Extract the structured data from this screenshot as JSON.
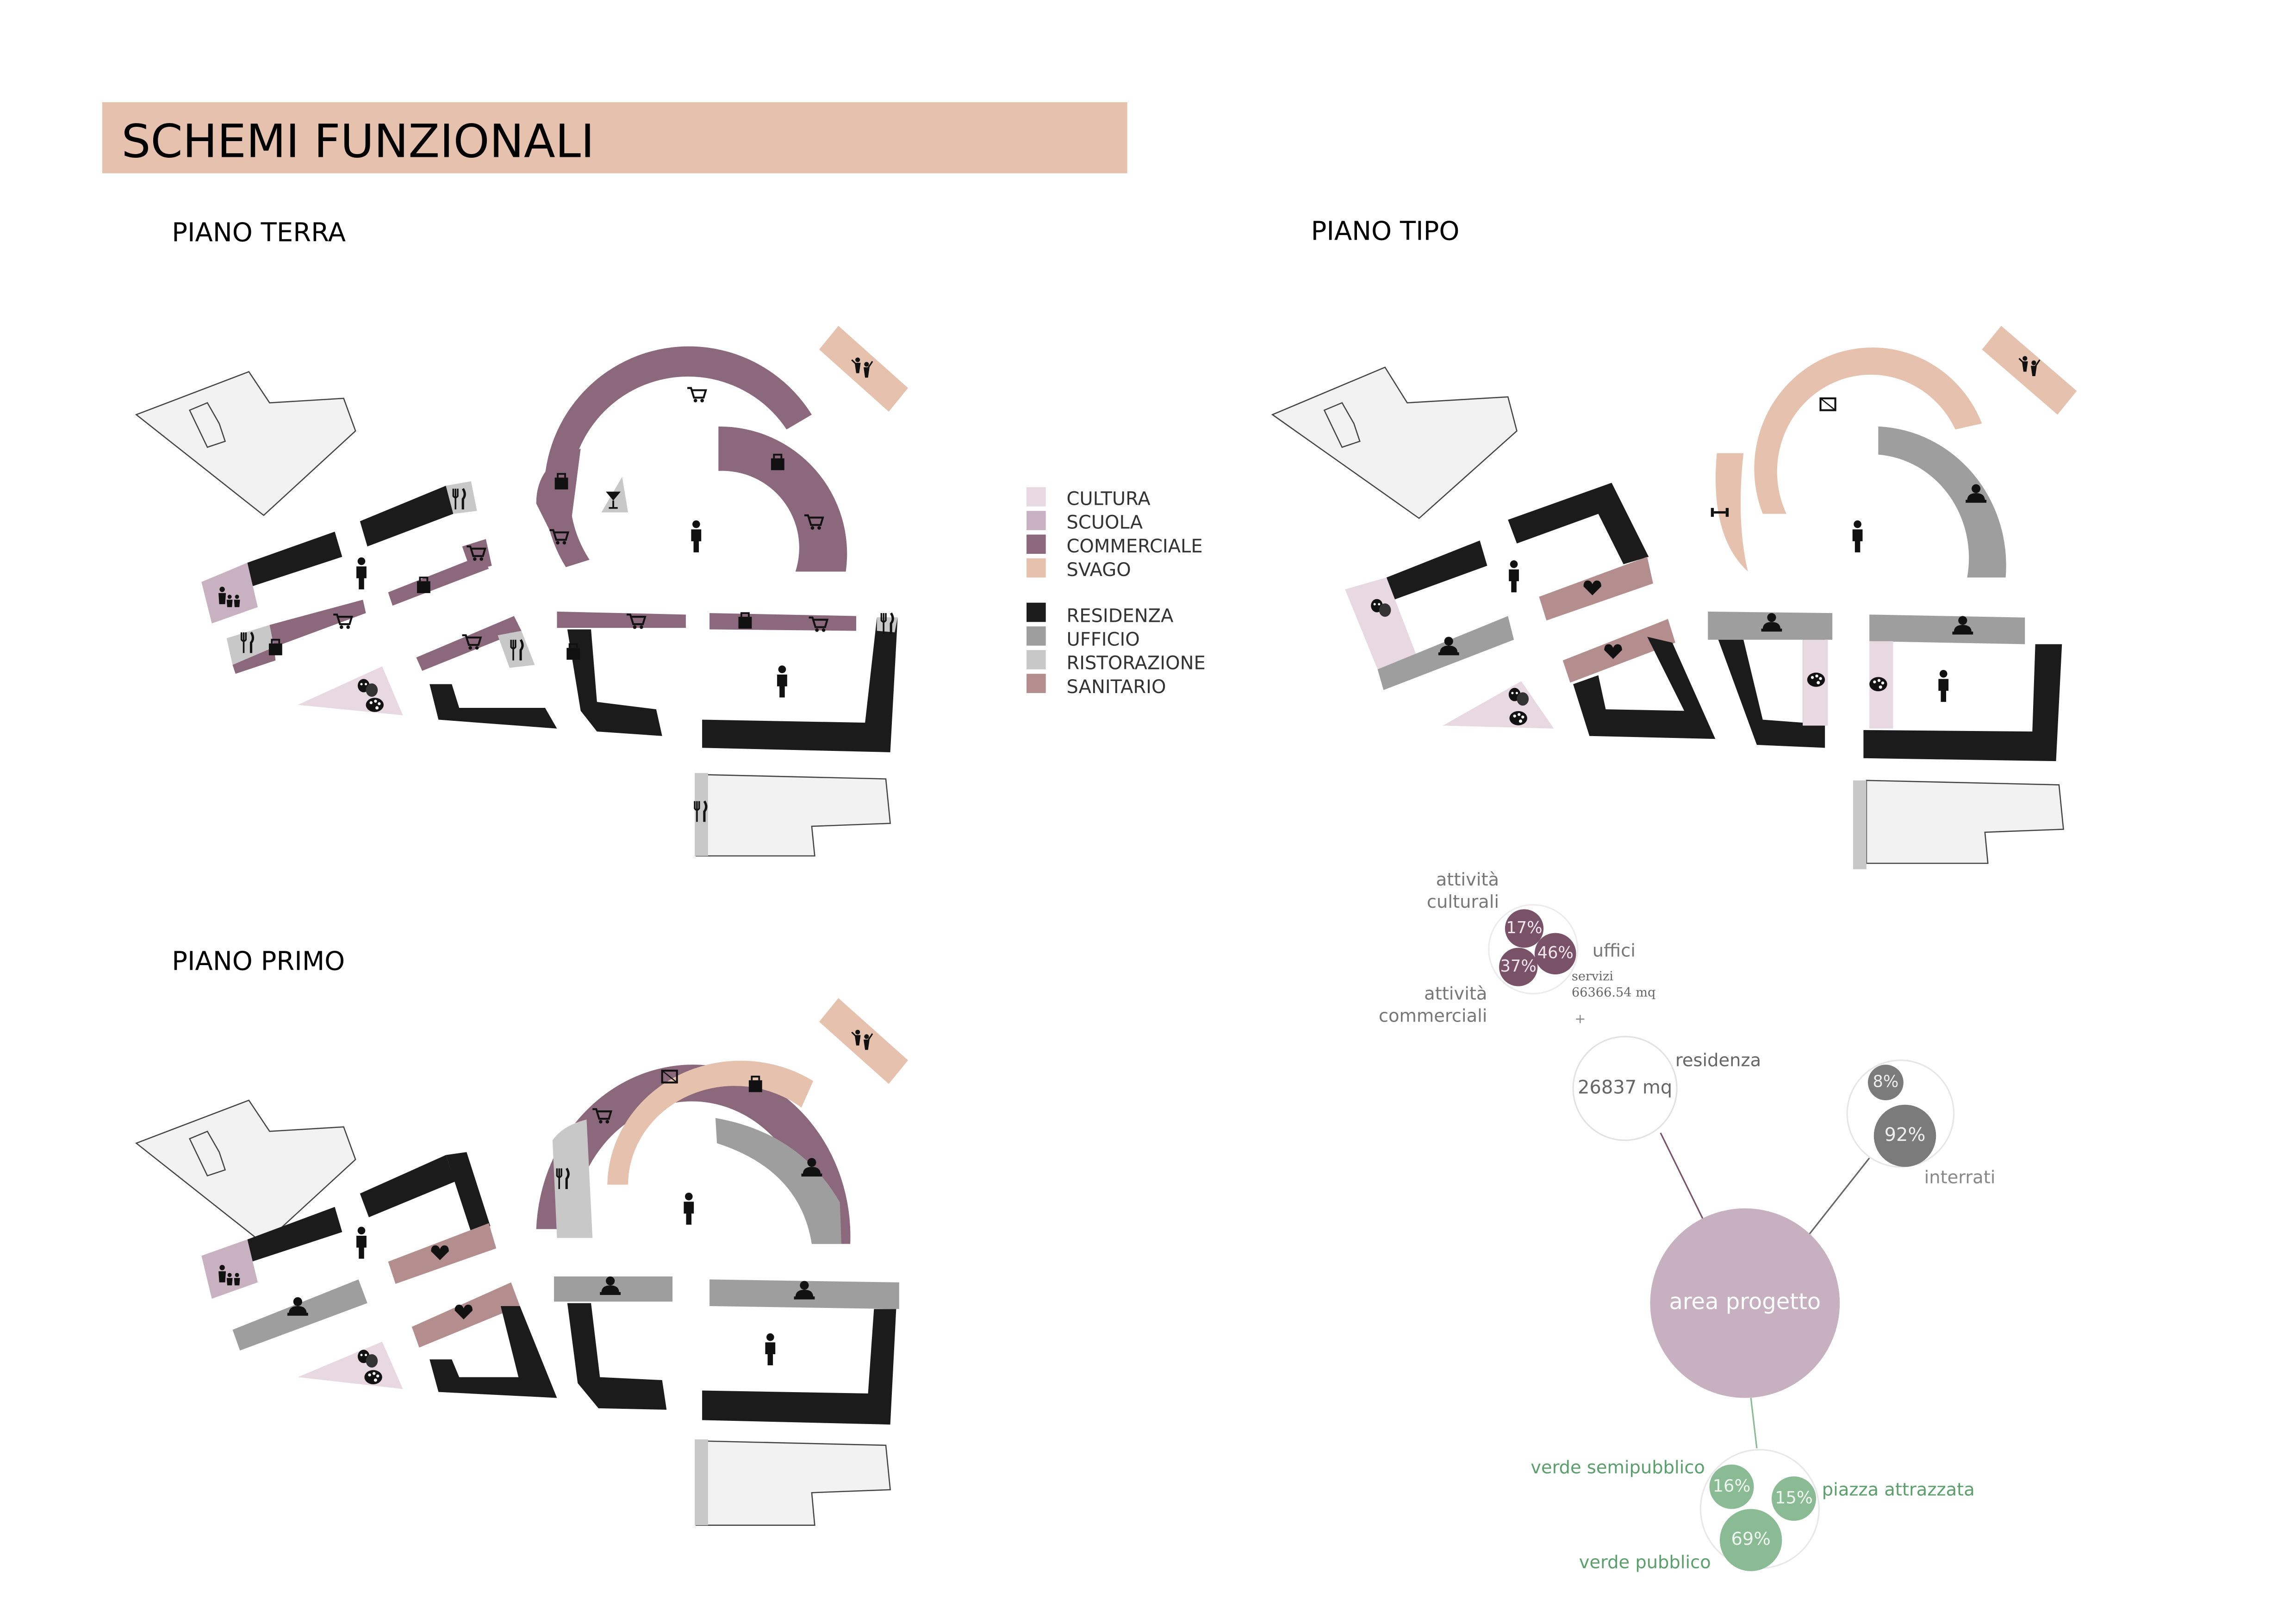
{
  "title": "SCHEMI FUNZIONALI",
  "sections": {
    "terra": "PIANO TERRA",
    "tipo": "PIANO TIPO",
    "primo": "PIANO PRIMO"
  },
  "colors": {
    "cultura": "#e8d9e1",
    "scuola": "#c8b1c1",
    "commerciale": "#8b687c",
    "svago": "#e6c2ae",
    "residenza": "#1b1b1b",
    "ufficio": "#9e9e9e",
    "ristorazione": "#c8c8c8",
    "sanitario": "#b48e8f",
    "site": "#f2f2f2",
    "banner": "#e6c2ae",
    "area_progetto": "#c7b1c0",
    "services_bubble": "#7a5268",
    "underground_bubble": "#7b7b7b",
    "green_bubble": "#8bbb94"
  },
  "legend": {
    "functions": [
      {
        "label": "CULTURA",
        "color_key": "cultura"
      },
      {
        "label": "SCUOLA",
        "color_key": "scuola"
      },
      {
        "label": "COMMERCIALE",
        "color_key": "commerciale"
      },
      {
        "label": "SVAGO",
        "color_key": "svago"
      }
    ],
    "uses": [
      {
        "label": "RESIDENZA",
        "color_key": "residenza"
      },
      {
        "label": "UFFICIO",
        "color_key": "ufficio"
      },
      {
        "label": "RISTORAZIONE",
        "color_key": "ristorazione"
      },
      {
        "label": "SANITARIO",
        "color_key": "sanitario"
      }
    ]
  },
  "bubbles": {
    "center": "area progetto",
    "services": {
      "items": [
        {
          "value": "17%",
          "label": "attività culturali"
        },
        {
          "value": "46%",
          "label": "uffici"
        },
        {
          "value": "37%",
          "label": "attività commerciali"
        }
      ],
      "name": "servizi",
      "area": "66366.54 mq",
      "plus": "+"
    },
    "residence": {
      "value": "26837 mq",
      "label": "residenza"
    },
    "underground": {
      "items": [
        {
          "value": "8%"
        },
        {
          "value": "92%"
        }
      ],
      "label": "interrati"
    },
    "green": {
      "items": [
        {
          "value": "16%",
          "label": "verde semipubblico"
        },
        {
          "value": "15%",
          "label": "piazza attrazzata"
        },
        {
          "value": "69%",
          "label": "verde pubblico"
        }
      ]
    }
  }
}
